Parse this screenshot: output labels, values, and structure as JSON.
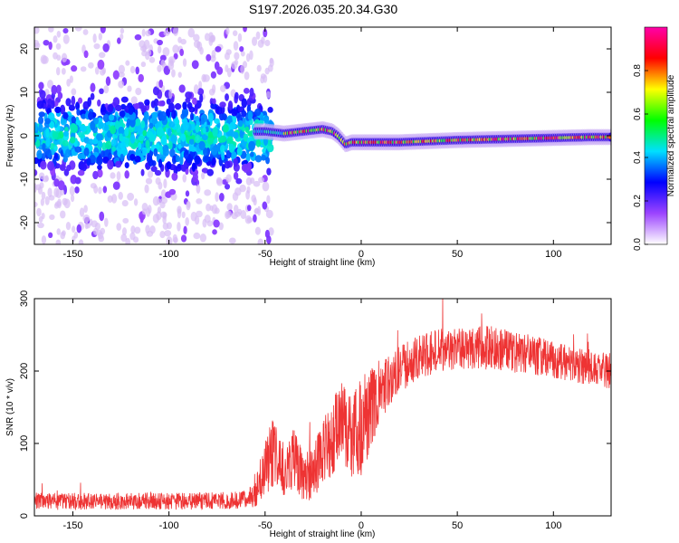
{
  "title": "S197.2026.035.20.34.G30",
  "chart_data": [
    {
      "type": "heatmap",
      "name": "spectrogram",
      "xlabel": "Height of straight line (km)",
      "ylabel": "Frequency (Hz)",
      "xlim": [
        -170,
        130
      ],
      "ylim": [
        -25,
        25
      ],
      "xticks": [
        -150,
        -100,
        -50,
        0,
        50,
        100
      ],
      "xtick_labels": [
        "-150",
        "-100",
        "-50",
        "0",
        "50",
        "100"
      ],
      "yticks": [
        -20,
        -10,
        0,
        10,
        20
      ],
      "ytick_labels": [
        "-20",
        "-10",
        "0",
        "10",
        "20"
      ],
      "colorbar": {
        "label": "Normalized spectral amplitude",
        "range": [
          0,
          1
        ],
        "ticks": [
          0.0,
          0.2,
          0.4,
          0.6,
          0.8
        ],
        "tick_labels": [
          "0.0",
          "0.2",
          "0.4",
          "0.6",
          "0.8"
        ],
        "colors": [
          "#ffffff",
          "#9c44ff",
          "#0000ff",
          "#00e0ff",
          "#00ff00",
          "#ffff00",
          "#ff0000",
          "#ff00aa"
        ]
      },
      "ridge": {
        "description": "dominant frequency track",
        "x": [
          -50,
          -40,
          -30,
          -20,
          -15,
          -12,
          -8,
          -5,
          0,
          20,
          50,
          80,
          100,
          120,
          130
        ],
        "frequency": [
          1.0,
          0.5,
          1.0,
          1.5,
          1.0,
          0.0,
          -2.0,
          -1.5,
          -1.5,
          -1.5,
          -1.0,
          -0.7,
          -0.5,
          -0.3,
          -0.3
        ]
      },
      "noise_region": {
        "x": [
          -170,
          -50
        ],
        "frequency_spread": [
          -25,
          25
        ]
      }
    },
    {
      "type": "line",
      "name": "snr",
      "xlabel": "Height of straight line (km)",
      "ylabel": "SNR (10 * v/v)",
      "xlim": [
        -170,
        130
      ],
      "ylim": [
        0,
        300
      ],
      "xticks": [
        -150,
        -100,
        -50,
        0,
        50,
        100
      ],
      "xtick_labels": [
        "-150",
        "-100",
        "-50",
        "0",
        "50",
        "100"
      ],
      "yticks": [
        0,
        100,
        200,
        300
      ],
      "ytick_labels": [
        "0",
        "100",
        "200",
        "300"
      ],
      "color": "#ee3333",
      "envelope": {
        "x": [
          -170,
          -150,
          -100,
          -60,
          -55,
          -50,
          -45,
          -40,
          -35,
          -30,
          -25,
          -20,
          -15,
          -10,
          -5,
          0,
          5,
          10,
          20,
          30,
          40,
          50,
          60,
          70,
          80,
          90,
          100,
          110,
          120,
          130
        ],
        "mean": [
          20,
          20,
          20,
          22,
          30,
          70,
          90,
          65,
          80,
          55,
          60,
          90,
          110,
          130,
          105,
          120,
          150,
          170,
          200,
          220,
          228,
          232,
          232,
          232,
          225,
          222,
          215,
          210,
          205,
          200
        ],
        "spread": [
          12,
          12,
          12,
          12,
          18,
          40,
          50,
          40,
          45,
          35,
          40,
          45,
          55,
          55,
          60,
          70,
          55,
          40,
          35,
          30,
          30,
          30,
          30,
          30,
          28,
          28,
          25,
          25,
          25,
          25
        ]
      }
    }
  ]
}
